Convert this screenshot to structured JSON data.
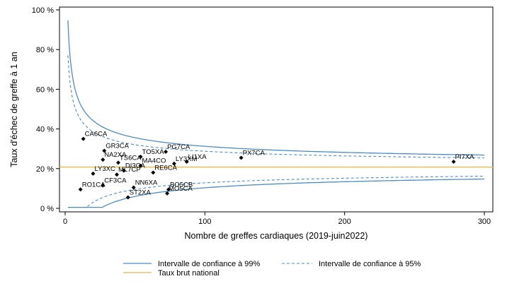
{
  "chart_data": {
    "type": "scatter",
    "title": "",
    "xlabel": "Nombre de greffes cardiaques (2019-juin2022)",
    "ylabel": "Taux d'échec de greffe à 1 an",
    "xlim": [
      0,
      303
    ],
    "ylim": [
      0,
      100
    ],
    "x_ticks": [
      0,
      100,
      200,
      300
    ],
    "y_ticks": [
      {
        "value": 0,
        "label": "0 %"
      },
      {
        "value": 20,
        "label": "20 %"
      },
      {
        "value": 40,
        "label": "40 %"
      },
      {
        "value": 60,
        "label": "60 %"
      },
      {
        "value": 80,
        "label": "80 %"
      },
      {
        "value": 100,
        "label": "100 %"
      }
    ],
    "grid": false,
    "legend_position": "bottom",
    "national_rate": 20.8,
    "colors": {
      "ci99": "#4a8cc9",
      "ci95": "#4a8cc9",
      "national": "#e8b84a",
      "points": "#000000"
    },
    "points": [
      {
        "label": "CA6CA",
        "x": 13,
        "y": 35
      },
      {
        "label": "GR3CA",
        "x": 28,
        "y": 29
      },
      {
        "label": "NA2XA",
        "x": 27,
        "y": 24.5
      },
      {
        "label": "TS6CA",
        "x": 38,
        "y": 23
      },
      {
        "label": "TO5XA",
        "x": 54,
        "y": 26
      },
      {
        "label": "PG7CA",
        "x": 72,
        "y": 28.5
      },
      {
        "label": "PX7CA",
        "x": 126,
        "y": 25.5
      },
      {
        "label": "PI7XA",
        "x": 278,
        "y": 23.5
      },
      {
        "label": "LI1XA",
        "x": 87,
        "y": 23.5
      },
      {
        "label": "MA4CO",
        "x": 54,
        "y": 21.5
      },
      {
        "label": "LY3XM",
        "x": 78,
        "y": 22.5
      },
      {
        "label": "DI3CA",
        "x": 42,
        "y": 19
      },
      {
        "label": "LY3XC",
        "x": 20,
        "y": 17.5
      },
      {
        "label": "ML7CP",
        "x": 37,
        "y": 17
      },
      {
        "label": "RE6CA",
        "x": 63,
        "y": 18
      },
      {
        "label": "CF3CA",
        "x": 27,
        "y": 11.5
      },
      {
        "label": "NN6XA",
        "x": 49,
        "y": 10.5
      },
      {
        "label": "RO1CA",
        "x": 11,
        "y": 9.5
      },
      {
        "label": "BO5CB",
        "x": 74,
        "y": 9.5
      },
      {
        "label": "ST2XA",
        "x": 45,
        "y": 5.5
      },
      {
        "label": "MO5CA",
        "x": 73,
        "y": 7.5
      }
    ],
    "legend": [
      {
        "key": "ci99",
        "label": "Intervalle de confiance à 99%"
      },
      {
        "key": "ci95",
        "label": "Intervalle de confiance à 95%"
      },
      {
        "key": "national",
        "label": "Taux brut national"
      }
    ]
  }
}
